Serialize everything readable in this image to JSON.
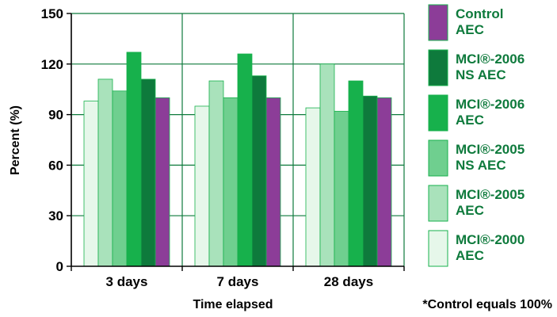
{
  "chart_data": {
    "type": "bar",
    "categories": [
      "3 days",
      "7 days",
      "28 days"
    ],
    "series": [
      {
        "name": "MCI®-2000 AEC",
        "color": "#e6f7ea",
        "values": [
          98,
          95,
          94
        ]
      },
      {
        "name": "MCI®-2005 AEC",
        "color": "#a9e2bb",
        "values": [
          111,
          110,
          120
        ]
      },
      {
        "name": "MCI®-2005 NS AEC",
        "color": "#6fcf8f",
        "values": [
          104,
          100,
          92
        ]
      },
      {
        "name": "MCI®-2006 AEC",
        "color": "#17b14c",
        "values": [
          127,
          126,
          110
        ]
      },
      {
        "name": "MCI®-2006 NS AEC",
        "color": "#0e7a3c",
        "values": [
          111,
          113,
          101
        ]
      },
      {
        "name": "Control AEC",
        "color": "#8c3d98",
        "values": [
          100,
          100,
          100
        ]
      }
    ],
    "legend": [
      {
        "line1": "Control",
        "line2": "AEC",
        "color": "#8c3d98",
        "text_color": "#0e7a3c"
      },
      {
        "line1": "MCI®-2006",
        "line2": "NS AEC",
        "color": "#0e7a3c",
        "text_color": "#0e7a3c"
      },
      {
        "line1": "MCI®-2006",
        "line2": "AEC",
        "color": "#17b14c",
        "text_color": "#0e7a3c"
      },
      {
        "line1": "MCI®-2005",
        "line2": "NS AEC",
        "color": "#6fcf8f",
        "text_color": "#0e7a3c"
      },
      {
        "line1": "MCI®-2005",
        "line2": "AEC",
        "color": "#a9e2bb",
        "text_color": "#0e7a3c"
      },
      {
        "line1": "MCI®-2000",
        "line2": "AEC",
        "color": "#e6f7ea",
        "text_color": "#0e7a3c"
      }
    ],
    "yticks": [
      0,
      30,
      60,
      90,
      120,
      150
    ],
    "ylim": [
      0,
      150
    ],
    "xlabel": "Time elapsed",
    "ylabel": "Percent (%)",
    "footnote": "*Control equals 100%",
    "grid": "vertical-and-horizontal",
    "legend_position": "right",
    "gridline_color": "#0e7a3c",
    "bar_outline_color": "#17b14c"
  }
}
